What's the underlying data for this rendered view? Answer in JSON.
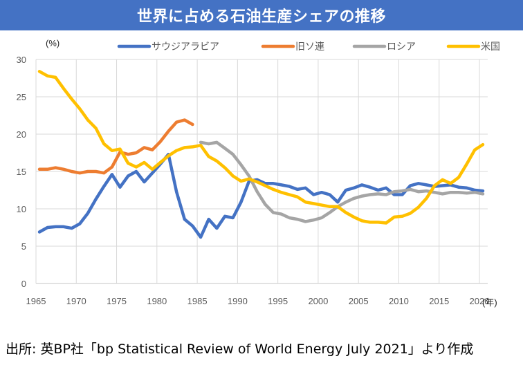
{
  "header": {
    "title": "世界に占める石油生産シェアの推移"
  },
  "source_note": "出所: 英BP社「bp Statistical Review of World Energy July 2021」より作成",
  "chart_data": {
    "type": "line",
    "title": "世界に占める石油生産シェアの推移",
    "ylabel": "(%)",
    "xlabel": "(年)",
    "ylim": [
      0,
      30
    ],
    "yticks": [
      0,
      5,
      10,
      15,
      20,
      25,
      30
    ],
    "xlim": [
      1965,
      2021
    ],
    "xticks": [
      1965,
      1970,
      1975,
      1980,
      1985,
      1990,
      1995,
      2000,
      2005,
      2010,
      2015,
      2020
    ],
    "grid": true,
    "legend_position": "top",
    "series": [
      {
        "name": "サウジアラビア",
        "color": "#4472c4",
        "start_year": 1965,
        "values": [
          6.9,
          7.5,
          7.6,
          7.6,
          7.4,
          8.0,
          9.4,
          11.3,
          13.0,
          14.6,
          12.9,
          14.4,
          15.0,
          13.6,
          14.8,
          16.0,
          17.3,
          12.3,
          8.6,
          7.7,
          6.2,
          8.6,
          7.4,
          9.0,
          8.8,
          10.9,
          13.7,
          13.9,
          13.4,
          13.4,
          13.2,
          13.0,
          12.6,
          12.8,
          11.9,
          12.2,
          11.9,
          10.9,
          12.5,
          12.8,
          13.2,
          12.9,
          12.5,
          12.8,
          11.9,
          11.9,
          13.1,
          13.4,
          13.2,
          13.0,
          13.1,
          13.2,
          12.9,
          12.8,
          12.5,
          12.4
        ]
      },
      {
        "name": "旧ソ連",
        "color": "#ed7d31",
        "start_year": 1965,
        "values": [
          15.3,
          15.3,
          15.5,
          15.3,
          15.0,
          14.8,
          15.0,
          15.0,
          14.8,
          15.6,
          17.6,
          17.3,
          17.5,
          18.2,
          17.9,
          19.0,
          20.4,
          21.6,
          21.9,
          21.3
        ]
      },
      {
        "name": "ロシア",
        "color": "#a5a5a5",
        "start_year": 1985,
        "values": [
          18.9,
          18.7,
          18.9,
          18.1,
          17.3,
          15.9,
          14.4,
          12.3,
          10.6,
          9.5,
          9.3,
          8.8,
          8.6,
          8.3,
          8.5,
          8.8,
          9.5,
          10.3,
          10.9,
          11.4,
          11.7,
          11.9,
          12.0,
          11.9,
          12.3,
          12.4,
          12.6,
          12.3,
          12.4,
          12.2,
          12.0,
          12.2,
          12.2,
          12.1,
          12.2,
          12.0
        ]
      },
      {
        "name": "米国",
        "color": "#ffc000",
        "start_year": 1965,
        "values": [
          28.4,
          27.8,
          27.6,
          26.1,
          24.7,
          23.4,
          21.9,
          20.8,
          18.7,
          17.8,
          18.0,
          16.1,
          15.6,
          16.2,
          15.3,
          16.2,
          17.1,
          17.8,
          18.2,
          18.3,
          18.5,
          17.0,
          16.4,
          15.5,
          14.4,
          13.7,
          14.0,
          13.6,
          13.1,
          12.6,
          12.2,
          11.9,
          11.6,
          10.9,
          10.7,
          10.5,
          10.3,
          10.3,
          9.5,
          8.9,
          8.4,
          8.2,
          8.2,
          8.1,
          8.9,
          9.0,
          9.4,
          10.2,
          11.4,
          13.1,
          13.9,
          13.4,
          14.2,
          16.0,
          17.9,
          18.6
        ]
      }
    ]
  }
}
